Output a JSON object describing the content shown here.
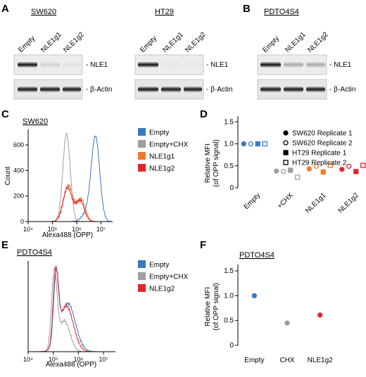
{
  "panels": {
    "A": {
      "letter": "A",
      "blots": [
        {
          "title": "SW620",
          "lanes": [
            "Empty",
            "NLE1g1",
            "NLE1g2"
          ],
          "nle1_label": "- NLE1",
          "actin_label": "- β-Actin",
          "nle1_intensity": [
            1.0,
            0.12,
            0.05
          ],
          "actin_intensity": [
            1.0,
            1.0,
            1.0
          ]
        },
        {
          "title": "HT29",
          "lanes": [
            "Empty",
            "NLE1g1",
            "NLE1g2"
          ],
          "nle1_label": "- NLE1",
          "actin_label": "- β-Actin",
          "nle1_intensity": [
            1.0,
            0.03,
            0.02
          ],
          "actin_intensity": [
            1.0,
            1.0,
            1.0
          ]
        }
      ]
    },
    "B": {
      "letter": "B",
      "blots": [
        {
          "title": "PDTO4S4",
          "lanes": [
            "Empty",
            "NLE1g1",
            "NLE1g2"
          ],
          "nle1_label": "- NLE1",
          "actin_label": "- β-Actin",
          "nle1_intensity": [
            1.0,
            0.3,
            0.3
          ],
          "actin_intensity": [
            1.0,
            1.0,
            1.0
          ]
        }
      ]
    },
    "C": {
      "letter": "C",
      "title": "SW620"
    },
    "D": {
      "letter": "D"
    },
    "E": {
      "letter": "E",
      "title": "PDTO4S4"
    },
    "F": {
      "letter": "F",
      "title": "PDTO4S4"
    }
  },
  "chart_data": [
    {
      "id": "C",
      "type": "line",
      "title": "SW620",
      "xlabel": "Alexa488 (OPP)",
      "ylabel": "Count",
      "x_scale": "log10",
      "xlim": [
        10000,
        30000000
      ],
      "ylim": [
        0,
        700
      ],
      "x_tick_labels": [
        "10⁴",
        "10⁵",
        "10⁶",
        "10⁷"
      ],
      "y_tick_labels": [
        "0",
        "200",
        "400",
        "600"
      ],
      "y_ticks": [
        0,
        200,
        400,
        600
      ],
      "legend": [
        "Empty",
        "Empty+CHX",
        "NLE1g1",
        "NLE1g2"
      ],
      "series": [
        {
          "name": "Empty",
          "color": "#3a78c3",
          "peaks": [
            {
              "center": 6000000,
              "height": 640,
              "spread": 0.17
            },
            {
              "center": 3000000,
              "height": 80,
              "spread": 0.22
            }
          ]
        },
        {
          "name": "Empty+CHX",
          "color": "#9e9e9e",
          "peaks": [
            {
              "center": 380000,
              "height": 690,
              "spread": 0.15
            }
          ]
        },
        {
          "name": "NLE1g1",
          "color": "#f07a2a",
          "peaks": [
            {
              "center": 450000,
              "height": 285,
              "spread": 0.19
            },
            {
              "center": 1500000,
              "height": 175,
              "spread": 0.17
            }
          ]
        },
        {
          "name": "NLE1g2",
          "color": "#e3262d",
          "peaks": [
            {
              "center": 420000,
              "height": 265,
              "spread": 0.19
            },
            {
              "center": 1400000,
              "height": 160,
              "spread": 0.17
            }
          ]
        }
      ]
    },
    {
      "id": "D",
      "type": "scatter",
      "ylabel": "Relative MFI\n(of OPP signal)",
      "ylim": [
        0,
        1.6
      ],
      "y_ticks": [
        0,
        0.5,
        1.0,
        1.5
      ],
      "y_tick_labels": [
        "0",
        "0.5",
        "1.0",
        "1.5"
      ],
      "categories": [
        "Empty",
        "+CHX",
        "NLE1g1",
        "NLE1g2"
      ],
      "category_colors": [
        "#3a78c3",
        "#9e9e9e",
        "#f07a2a",
        "#e3262d"
      ],
      "legend_position": "top-right",
      "series": [
        {
          "name": "SW620 Replicate 1",
          "marker": "circle-filled",
          "values": [
            1.0,
            0.38,
            0.43,
            0.42
          ]
        },
        {
          "name": "SW620 Replicate 2",
          "marker": "circle-open",
          "values": [
            1.0,
            0.37,
            0.49,
            0.49
          ]
        },
        {
          "name": "HT29 Replicate 1",
          "marker": "square-filled",
          "values": [
            1.0,
            0.4,
            0.36,
            0.37
          ]
        },
        {
          "name": "HT29 Replicate 2",
          "marker": "square-open",
          "values": [
            1.0,
            0.24,
            0.51,
            0.51
          ]
        }
      ]
    },
    {
      "id": "E",
      "type": "line",
      "title": "PDTO4S4",
      "xlabel": "Alexa488 (OPP)",
      "x_scale": "log10",
      "xlim": [
        10000,
        30000000
      ],
      "ylim": [
        0,
        1
      ],
      "x_tick_labels": [
        "10⁴",
        "10⁵",
        "10⁶",
        "10⁷"
      ],
      "legend": [
        "Empty",
        "Empty+CHX",
        "NLE1g2"
      ],
      "series": [
        {
          "name": "Empty",
          "color": "#3a78c3",
          "peaks": [
            {
              "center": 130000,
              "height": 0.78,
              "spread": 0.1
            },
            {
              "center": 380000,
              "height": 0.55,
              "spread": 0.3
            }
          ]
        },
        {
          "name": "Empty+CHX",
          "color": "#9e9e9e",
          "peaks": [
            {
              "center": 110000,
              "height": 0.88,
              "spread": 0.11
            },
            {
              "center": 280000,
              "height": 0.35,
              "spread": 0.22
            }
          ]
        },
        {
          "name": "NLE1g2",
          "color": "#e3262d",
          "peaks": [
            {
              "center": 125000,
              "height": 0.8,
              "spread": 0.1
            },
            {
              "center": 330000,
              "height": 0.52,
              "spread": 0.28
            }
          ]
        }
      ]
    },
    {
      "id": "F",
      "type": "scatter",
      "title": "PDTO4S4",
      "ylabel": "Relative MFI\n(of OPP signal)",
      "ylim": [
        0,
        1.6
      ],
      "y_ticks": [
        0,
        0.5,
        1.0,
        1.5
      ],
      "y_tick_labels": [
        "0",
        "0.5",
        "1.0",
        "1.5"
      ],
      "categories": [
        "Empty",
        "CHX",
        "NLE1g2"
      ],
      "series": [
        {
          "marker": "circle-filled",
          "values": [
            1.0,
            0.45,
            0.61
          ],
          "colors": [
            "#3a78c3",
            "#9e9e9e",
            "#e3262d"
          ]
        }
      ]
    }
  ]
}
